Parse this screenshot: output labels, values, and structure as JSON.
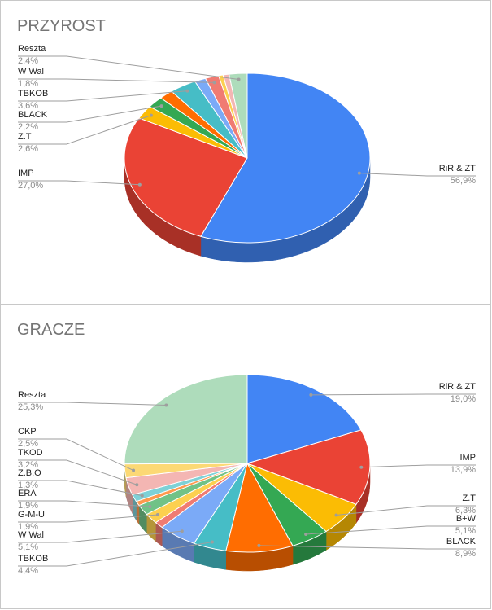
{
  "chart_data": [
    {
      "type": "pie",
      "title": "PRZYROST",
      "slices": [
        {
          "label": "RiR & ZT",
          "value": 56.9,
          "display": "56,9%",
          "color": "#4285f4",
          "side": "R"
        },
        {
          "label": "IMP",
          "value": 27.0,
          "display": "27,0%",
          "color": "#ea4335",
          "side": "L"
        },
        {
          "label": "Z.T",
          "value": 2.6,
          "display": "2,6%",
          "color": "#fbbc04",
          "side": "L"
        },
        {
          "label": "BLACK",
          "value": 2.2,
          "display": "2,2%",
          "color": "#34a853",
          "side": "L"
        },
        {
          "label": "",
          "value": 1.9,
          "display": "",
          "color": "#ff6d01",
          "side": "none"
        },
        {
          "label": "TBKOB",
          "value": 3.6,
          "display": "3,6%",
          "color": "#46bdc6",
          "side": "L"
        },
        {
          "label": "",
          "value": 1.5,
          "display": "",
          "color": "#7baaf7",
          "side": "none"
        },
        {
          "label": "W Wal",
          "value": 1.8,
          "display": "1,8%",
          "color": "#f07b72",
          "side": "L"
        },
        {
          "label": "",
          "value": 0.6,
          "display": "",
          "color": "#fcd04f",
          "side": "none"
        },
        {
          "label": "",
          "value": 0.8,
          "display": "",
          "color": "#f4b6b3",
          "side": "none"
        },
        {
          "label": "Reszta",
          "value": 2.4,
          "display": "2,4%",
          "color": "#aedcbb",
          "side": "L"
        }
      ]
    },
    {
      "type": "pie",
      "title": "GRACZE",
      "slices": [
        {
          "label": "RiR & ZT",
          "value": 19.0,
          "display": "19,0%",
          "color": "#4285f4",
          "side": "R"
        },
        {
          "label": "IMP",
          "value": 13.9,
          "display": "13,9%",
          "color": "#ea4335",
          "side": "R"
        },
        {
          "label": "Z.T",
          "value": 6.3,
          "display": "6,3%",
          "color": "#fbbc04",
          "side": "R"
        },
        {
          "label": "B+W",
          "value": 5.1,
          "display": "5,1%",
          "color": "#34a853",
          "side": "R"
        },
        {
          "label": "BLACK",
          "value": 8.9,
          "display": "8,9%",
          "color": "#ff6d01",
          "side": "R"
        },
        {
          "label": "TBKOB",
          "value": 4.4,
          "display": "4,4%",
          "color": "#46bdc6",
          "side": "L"
        },
        {
          "label": "W Wal",
          "value": 5.1,
          "display": "5,1%",
          "color": "#7baaf7",
          "side": "L"
        },
        {
          "label": "",
          "value": 1.2,
          "display": "",
          "color": "#f07b72",
          "side": "none"
        },
        {
          "label": "G-M-U",
          "value": 1.9,
          "display": "1,9%",
          "color": "#fcd04f",
          "side": "L"
        },
        {
          "label": "ERA",
          "value": 1.9,
          "display": "1,9%",
          "color": "#71c287",
          "side": "L"
        },
        {
          "label": "",
          "value": 0.8,
          "display": "",
          "color": "#ff994d",
          "side": "none"
        },
        {
          "label": "Z.B.O",
          "value": 1.3,
          "display": "1,3%",
          "color": "#7ed1d7",
          "side": "L"
        },
        {
          "label": "TKOD",
          "value": 3.2,
          "display": "3,2%",
          "color": "#f4b6b3",
          "side": "L"
        },
        {
          "label": "CKP",
          "value": 2.5,
          "display": "2,5%",
          "color": "#fcd975",
          "side": "L"
        },
        {
          "label": "Reszta",
          "value": 25.3,
          "display": "25,3%",
          "color": "#aedcbb",
          "side": "L"
        }
      ]
    }
  ]
}
